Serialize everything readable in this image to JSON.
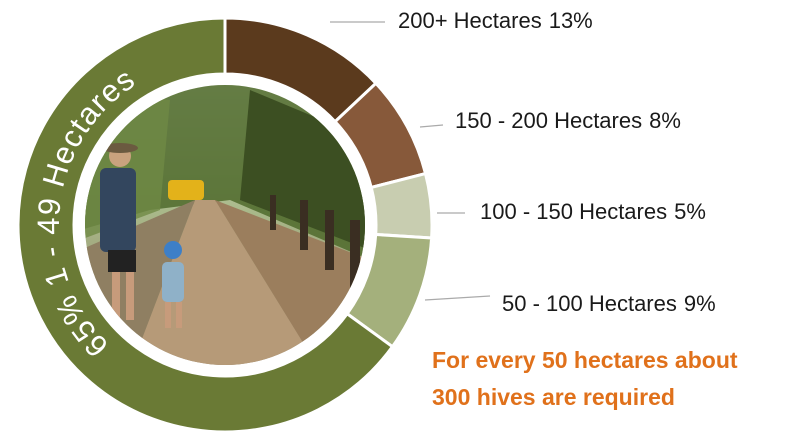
{
  "chart_data": {
    "type": "pie",
    "donut": true,
    "categories": [
      "200+ Hectares",
      "150 - 200 Hectares",
      "100 - 150 Hectares",
      "50 - 100 Hectares",
      "1 - 49 Hectares"
    ],
    "values": [
      13,
      8,
      5,
      9,
      65
    ],
    "value_labels": [
      "13%",
      "8%",
      "5%",
      "9%",
      "65%"
    ],
    "colors": [
      "#5b3a1d",
      "#87593a",
      "#c8cdb0",
      "#a4b07c",
      "#6a7a35"
    ],
    "annotation": [
      "For every 50 hectares about",
      "300 hives are required"
    ]
  }
}
